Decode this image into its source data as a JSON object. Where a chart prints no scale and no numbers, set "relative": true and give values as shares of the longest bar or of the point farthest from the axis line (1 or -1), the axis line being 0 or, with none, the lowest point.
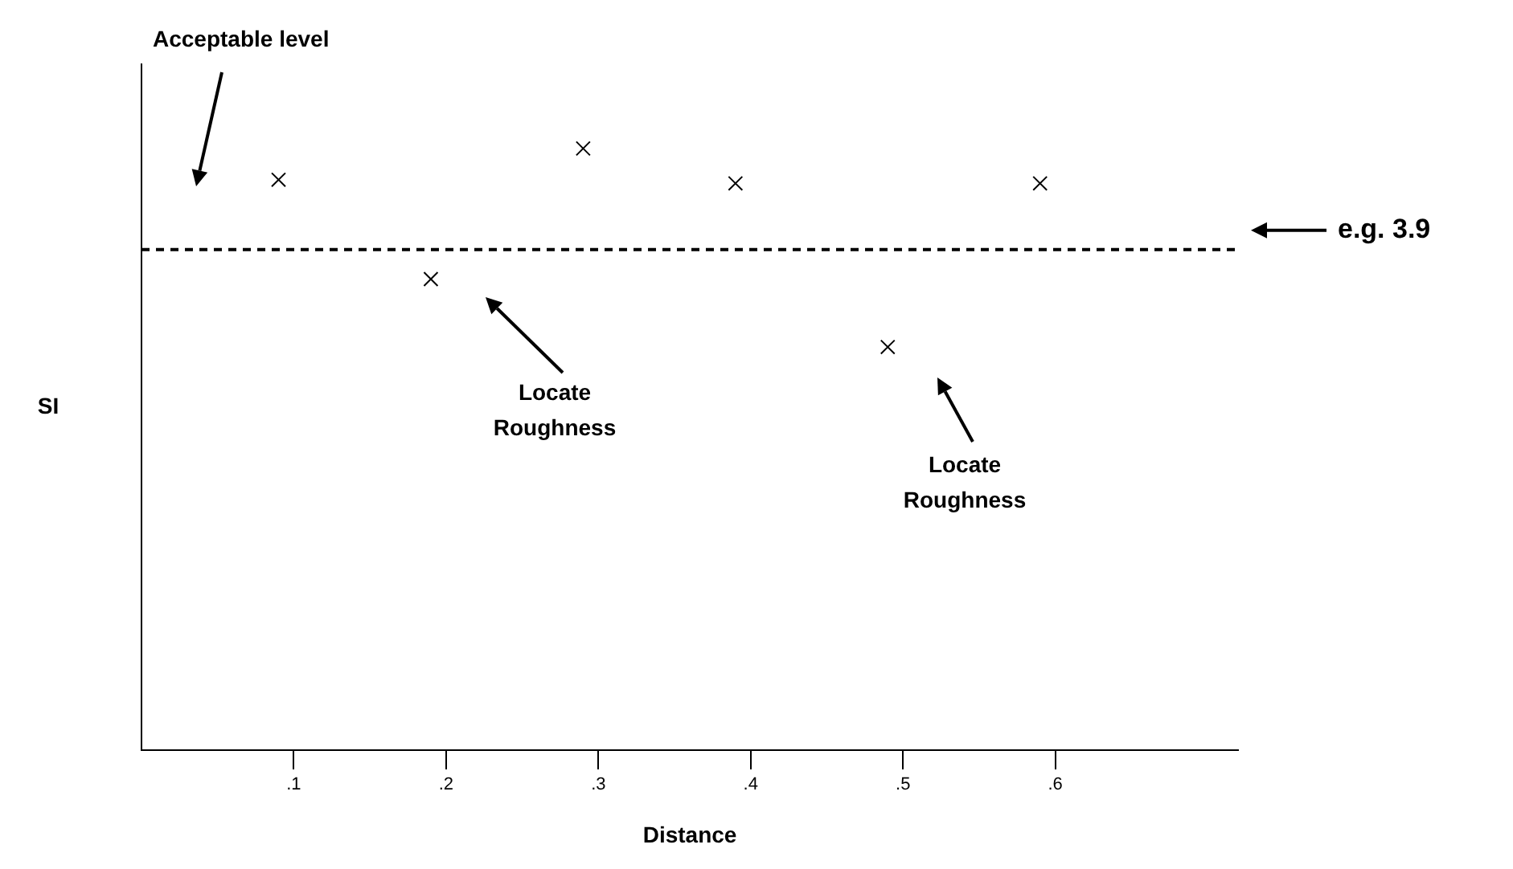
{
  "chart_data": {
    "type": "scatter",
    "relative": true,
    "xlabel": "Distance",
    "ylabel": "SI",
    "x": [
      0.09,
      0.19,
      0.29,
      0.39,
      0.49,
      0.59
    ],
    "values": [
      0.948,
      0.783,
      1,
      0.942,
      0.67,
      0.942
    ],
    "color": "#000000",
    "marker": "cross",
    "grid": false,
    "legend": false,
    "xlim": [
      0,
      0.72
    ],
    "xticks": [
      {
        "value": 0.1,
        "label": ".1"
      },
      {
        "value": 0.2,
        "label": ".2"
      },
      {
        "value": 0.3,
        "label": ".3"
      },
      {
        "value": 0.4,
        "label": ".4"
      },
      {
        "value": 0.5,
        "label": ".5"
      },
      {
        "value": 0.6,
        "label": ".6"
      }
    ],
    "ref_lines": [
      {
        "axis": "y",
        "value": 0.832,
        "label": "e.g. 3.9",
        "color": "#000000",
        "line_style": "dashed"
      }
    ],
    "annotations": [
      "Acceptable level",
      "Locate Roughness",
      "Locate Roughness"
    ]
  }
}
